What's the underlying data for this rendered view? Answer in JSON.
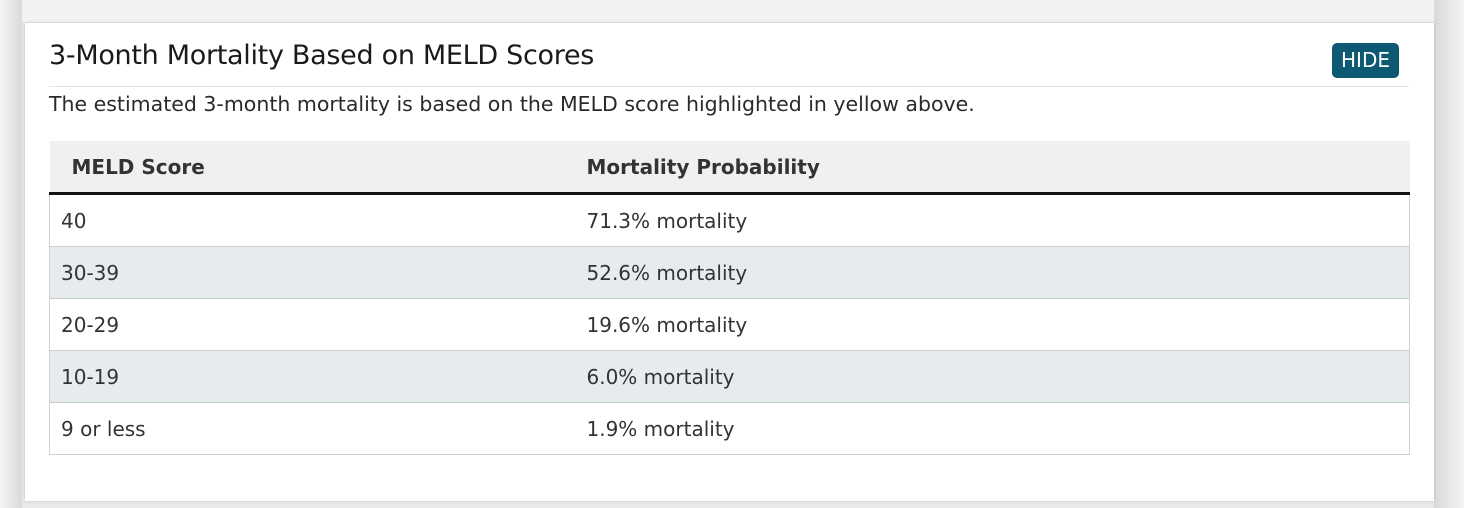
{
  "panel": {
    "title": "3-Month Mortality Based on MELD Scores",
    "hide_label": "HIDE",
    "description": "The estimated 3-month mortality is based on the MELD score highlighted in yellow above."
  },
  "table": {
    "headers": [
      "MELD Score",
      "Mortality Probability"
    ],
    "rows": [
      {
        "score": "40",
        "mortality": "71.3% mortality"
      },
      {
        "score": "30-39",
        "mortality": "52.6% mortality"
      },
      {
        "score": "20-29",
        "mortality": "19.6% mortality"
      },
      {
        "score": "10-19",
        "mortality": "6.0% mortality"
      },
      {
        "score": "9 or less",
        "mortality": "1.9% mortality"
      }
    ]
  },
  "colors": {
    "accent": "#0d5872",
    "alt_row": "#e6ecee",
    "header_bg": "#f0f0f0"
  }
}
